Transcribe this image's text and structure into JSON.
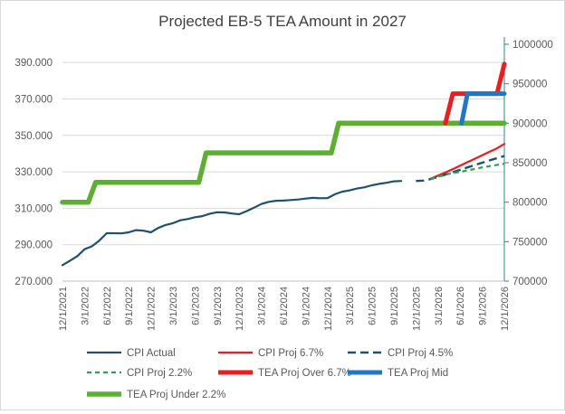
{
  "chart_data": {
    "type": "line",
    "title": "Projected EB-5 TEA Amount in 2027",
    "xlabel": "",
    "ylabel_left": "",
    "ylabel_right": "",
    "y_left": {
      "lim": [
        270,
        400
      ],
      "ticks": [
        270,
        290,
        310,
        330,
        350,
        370,
        390
      ],
      "tick_labels": [
        "270.000",
        "290.000",
        "310.000",
        "330.000",
        "350.000",
        "370.000",
        "390.000"
      ]
    },
    "y_right": {
      "lim": [
        700000,
        1000000
      ],
      "ticks": [
        700000,
        750000,
        800000,
        850000,
        900000,
        950000,
        1000000
      ],
      "tick_labels": [
        "700000",
        "750000",
        "800000",
        "850000",
        "900000",
        "950000",
        "1000000"
      ]
    },
    "x": {
      "min_month": 0,
      "max_month": 60,
      "tick_months": [
        0,
        3,
        6,
        9,
        12,
        15,
        18,
        21,
        24,
        27,
        30,
        33,
        36,
        39,
        42,
        45,
        48,
        51,
        54,
        57,
        60
      ],
      "tick_labels": [
        "12/1/2021",
        "3/1/2022",
        "6/1/2022",
        "9/1/2022",
        "12/1/2022",
        "3/1/2023",
        "6/1/2023",
        "9/1/2023",
        "12/1/2023",
        "3/1/2024",
        "6/1/2024",
        "9/1/2024",
        "12/1/2024",
        "3/1/2025",
        "6/1/2025",
        "9/1/2025",
        "12/1/2025",
        "3/1/2026",
        "6/1/2026",
        "9/1/2026",
        "12/1/2026"
      ]
    },
    "series": [
      {
        "name": "TEA Proj Under 2.2%",
        "axis": "right",
        "color": "#5bb030",
        "width": 5.5,
        "dash": "none",
        "legend_slot": 6,
        "points": [
          [
            0,
            800000
          ],
          [
            3.5,
            800000
          ],
          [
            4.5,
            825000
          ],
          [
            18.5,
            825000
          ],
          [
            19.5,
            862500
          ],
          [
            36.5,
            862500
          ],
          [
            37.5,
            900000
          ],
          [
            60,
            900000
          ]
        ]
      },
      {
        "name": "TEA Proj Over 6.7%",
        "axis": "right",
        "color": "#ee1c1c",
        "width": 5,
        "dash": "none",
        "legend_slot": 4,
        "points": [
          [
            52,
            900000
          ],
          [
            53,
            937500
          ],
          [
            59,
            937500
          ],
          [
            60,
            975000
          ]
        ]
      },
      {
        "name": "TEA Proj Mid",
        "axis": "right",
        "color": "#1f77c8",
        "width": 5,
        "dash": "none",
        "legend_slot": 5,
        "points": [
          [
            54.2,
            900000
          ],
          [
            55,
            937500
          ],
          [
            60,
            937500
          ]
        ]
      },
      {
        "name": "CPI Actual",
        "axis": "left",
        "color": "#1f5070",
        "width": 2.2,
        "dash": "none",
        "legend_slot": 0,
        "points": [
          [
            0,
            278.8
          ],
          [
            1,
            281.1
          ],
          [
            2,
            283.7
          ],
          [
            3,
            287.5
          ],
          [
            4,
            289.1
          ],
          [
            5,
            292.3
          ],
          [
            6,
            296.3
          ],
          [
            7,
            296.3
          ],
          [
            8,
            296.2
          ],
          [
            9,
            296.8
          ],
          [
            10,
            298.0
          ],
          [
            11,
            297.7
          ],
          [
            12,
            296.8
          ],
          [
            13,
            299.2
          ],
          [
            14,
            300.8
          ],
          [
            15,
            301.8
          ],
          [
            16,
            303.4
          ],
          [
            17,
            304.1
          ],
          [
            18,
            305.1
          ],
          [
            19,
            305.7
          ],
          [
            20,
            307.0
          ],
          [
            21,
            307.8
          ],
          [
            22,
            307.7
          ],
          [
            23,
            307.1
          ],
          [
            24,
            306.7
          ],
          [
            25,
            308.4
          ],
          [
            26,
            310.3
          ],
          [
            27,
            312.3
          ],
          [
            28,
            313.5
          ],
          [
            29,
            314.1
          ],
          [
            30,
            314.2
          ],
          [
            31,
            314.5
          ],
          [
            32,
            314.8
          ],
          [
            33,
            315.3
          ],
          [
            34,
            315.7
          ],
          [
            35,
            315.5
          ],
          [
            36,
            315.6
          ],
          [
            37,
            317.7
          ],
          [
            38,
            319.1
          ],
          [
            39,
            319.8
          ],
          [
            40,
            320.8
          ],
          [
            41,
            321.5
          ],
          [
            42,
            322.6
          ],
          [
            43,
            323.4
          ],
          [
            44,
            324.0
          ],
          [
            45,
            324.8
          ],
          [
            46,
            325.0
          ]
        ]
      },
      {
        "name": "CPI Proj 6.7%",
        "axis": "left",
        "color": "#ee1c1c",
        "width": 2.2,
        "dash": "none",
        "legend_slot": 1,
        "points": [
          [
            50,
            326.2
          ],
          [
            51,
            327.9
          ],
          [
            52,
            329.7
          ],
          [
            53,
            331.5
          ],
          [
            54,
            333.4
          ],
          [
            55,
            335.3
          ],
          [
            56,
            337.2
          ],
          [
            57,
            339.1
          ],
          [
            58,
            341.0
          ],
          [
            59,
            342.9
          ],
          [
            60,
            345.3
          ]
        ]
      },
      {
        "name": "CPI Proj 4.5%",
        "axis": "left",
        "color": "#1f5070",
        "width": 2.4,
        "dash": "9,5",
        "legend_slot": 2,
        "points": [
          [
            48,
            325.0
          ],
          [
            49,
            325.2
          ],
          [
            50,
            326.0
          ],
          [
            51,
            327.2
          ],
          [
            52,
            328.5
          ],
          [
            53,
            329.8
          ],
          [
            54,
            331.1
          ],
          [
            55,
            332.4
          ],
          [
            56,
            333.7
          ],
          [
            57,
            335.0
          ],
          [
            58,
            336.3
          ],
          [
            59,
            337.5
          ],
          [
            60,
            338.7
          ]
        ]
      },
      {
        "name": "CPI Proj 2.2%",
        "axis": "left",
        "color": "#2ca050",
        "width": 2.2,
        "dash": "5,4",
        "legend_slot": 3,
        "points": [
          [
            50,
            326.0
          ],
          [
            51,
            327.3
          ],
          [
            52,
            328.5
          ],
          [
            53,
            329.3
          ],
          [
            54,
            330.0
          ],
          [
            55,
            330.8
          ],
          [
            56,
            331.6
          ],
          [
            57,
            332.4
          ],
          [
            58,
            333.1
          ],
          [
            59,
            333.8
          ],
          [
            60,
            334.4
          ]
        ]
      }
    ],
    "legend": {
      "placement": "bottom"
    }
  }
}
